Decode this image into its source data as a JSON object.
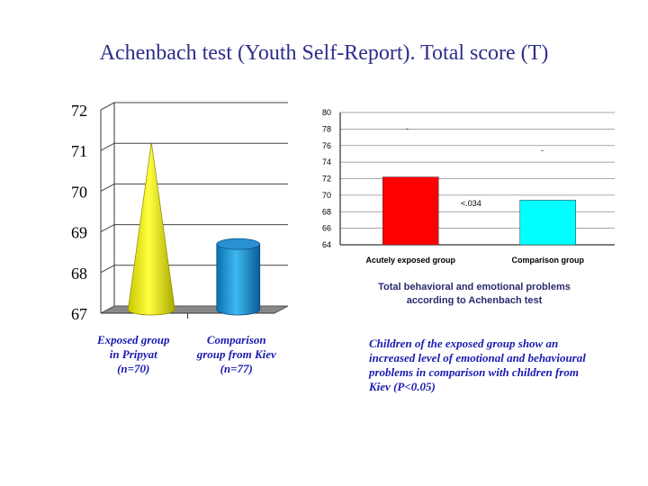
{
  "slide": {
    "title": "Achenbach test (Youth Self-Report). Total score (T)",
    "conclusion": "Children of the exposed group show an increased level of emotional and behavioural problems in comparison with children from Kiev (P<0.05)"
  },
  "chart_data": [
    {
      "type": "bar",
      "shape": "cone-and-cylinder-3d",
      "categories": [
        "Exposed group in Pripyat (n=70)",
        "Comparison group from Kiev (n=77)"
      ],
      "category_lines": [
        [
          "Exposed group",
          "in Pripyat",
          "(n=70)"
        ],
        [
          "Comparison",
          "group from Kiev",
          "(n=77)"
        ]
      ],
      "values": [
        71.2,
        68.7
      ],
      "ylim": [
        67,
        72
      ],
      "yticks": [
        "67",
        "68",
        "69",
        "70",
        "71",
        "72"
      ],
      "grid": true,
      "colors": [
        "#f2f20a",
        "#1aa0e0"
      ]
    },
    {
      "type": "bar",
      "categories": [
        "Acutely exposed group",
        "Comparison group"
      ],
      "values": [
        72.2,
        69.4
      ],
      "ylim": [
        64,
        80
      ],
      "yticks": [
        "64",
        "66",
        "68",
        "70",
        "72",
        "74",
        "76",
        "78",
        "80"
      ],
      "grid": true,
      "title": "Total behavioral and emotional problems according to Achenbach test",
      "annotation": "<.034",
      "colors": [
        "#ff0000",
        "#00ffff"
      ]
    }
  ]
}
